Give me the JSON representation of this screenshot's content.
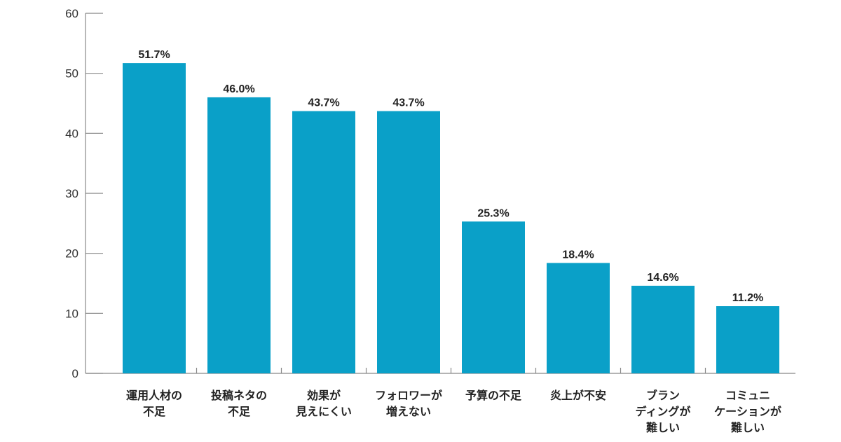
{
  "colors": {
    "bar": "#0aa0c8",
    "axis": "#888888",
    "text": "#222222"
  },
  "chart_data": {
    "type": "bar",
    "title": "",
    "xlabel": "",
    "ylabel": "",
    "ylim": [
      0,
      60
    ],
    "yticks": [
      0,
      10,
      20,
      30,
      40,
      50,
      60
    ],
    "grid": false,
    "categories": [
      [
        "運用人材の",
        "不足"
      ],
      [
        "投稿ネタの",
        "不足"
      ],
      [
        "効果が",
        "見えにくい"
      ],
      [
        "フォロワーが",
        "増えない"
      ],
      [
        "予算の不足"
      ],
      [
        "炎上が不安"
      ],
      [
        "ブラン",
        "ディングが",
        "難しい"
      ],
      [
        "コミュニ",
        "ケーションが",
        "難しい"
      ]
    ],
    "values": [
      51.7,
      46.0,
      43.7,
      43.7,
      25.3,
      18.4,
      14.6,
      11.2
    ],
    "value_labels": [
      "51.7%",
      "46.0%",
      "43.7%",
      "43.7%",
      "25.3%",
      "18.4%",
      "14.6%",
      "11.2%"
    ]
  }
}
